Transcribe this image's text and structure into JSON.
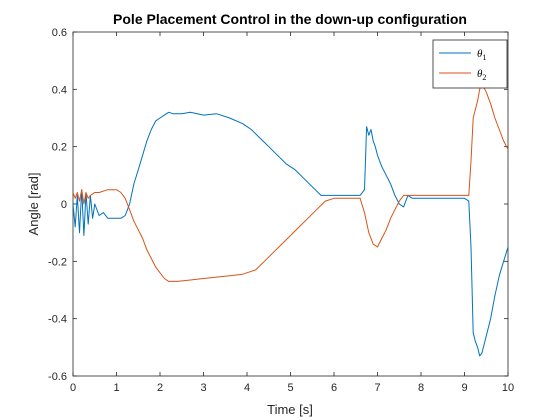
{
  "chart_data": {
    "type": "line",
    "title": "Pole Placement Control in the down-up configuration",
    "xlabel": "Time [s]",
    "ylabel": "Angle [rad]",
    "xlim": [
      0,
      10
    ],
    "ylim": [
      -0.6,
      0.6
    ],
    "xticks": [
      0,
      1,
      2,
      3,
      4,
      5,
      6,
      7,
      8,
      9,
      10
    ],
    "yticks": [
      -0.6,
      -0.4,
      -0.2,
      0,
      0.2,
      0.4,
      0.6
    ],
    "xtick_labels": [
      "0",
      "1",
      "2",
      "3",
      "4",
      "5",
      "6",
      "7",
      "8",
      "9",
      "10"
    ],
    "ytick_labels": [
      "-0.6",
      "-0.4",
      "-0.2",
      "0",
      "0.2",
      "0.4",
      "0.6"
    ],
    "grid": false,
    "legend_position": "top-right",
    "series": [
      {
        "name": "θ1",
        "legend_base": "θ",
        "legend_sub": "1",
        "color": "#0072BD",
        "x": [
          0,
          0.05,
          0.1,
          0.15,
          0.2,
          0.25,
          0.3,
          0.35,
          0.4,
          0.45,
          0.5,
          0.6,
          0.7,
          0.8,
          0.9,
          1.0,
          1.1,
          1.2,
          1.3,
          1.4,
          1.5,
          1.6,
          1.7,
          1.8,
          1.9,
          2.0,
          2.1,
          2.2,
          2.3,
          2.5,
          2.7,
          3.0,
          3.3,
          3.6,
          3.9,
          4.1,
          4.3,
          4.5,
          4.7,
          4.9,
          5.1,
          5.3,
          5.5,
          5.7,
          5.8,
          6.0,
          6.3,
          6.6,
          6.7,
          6.75,
          6.8,
          6.85,
          6.9,
          6.95,
          7.0,
          7.1,
          7.2,
          7.3,
          7.4,
          7.5,
          7.6,
          7.7,
          7.8,
          7.9,
          8.0,
          8.5,
          9.0,
          9.1,
          9.15,
          9.2,
          9.25,
          9.3,
          9.35,
          9.4,
          9.5,
          9.6,
          9.7,
          9.8,
          9.9,
          10.0
        ],
        "y": [
          0,
          -0.08,
          0.03,
          -0.1,
          0.05,
          -0.11,
          0.04,
          -0.07,
          0.03,
          -0.05,
          0.0,
          -0.04,
          -0.03,
          -0.05,
          -0.05,
          -0.05,
          -0.05,
          -0.04,
          0.0,
          0.07,
          0.12,
          0.17,
          0.22,
          0.26,
          0.29,
          0.3,
          0.31,
          0.32,
          0.315,
          0.315,
          0.32,
          0.31,
          0.315,
          0.3,
          0.28,
          0.26,
          0.23,
          0.2,
          0.17,
          0.14,
          0.12,
          0.09,
          0.06,
          0.03,
          0.03,
          0.03,
          0.03,
          0.03,
          0.05,
          0.27,
          0.24,
          0.26,
          0.22,
          0.2,
          0.17,
          0.13,
          0.1,
          0.07,
          0.03,
          0.0,
          -0.01,
          0.03,
          0.02,
          0.02,
          0.02,
          0.02,
          0.02,
          0.01,
          -0.15,
          -0.45,
          -0.48,
          -0.5,
          -0.53,
          -0.52,
          -0.46,
          -0.4,
          -0.32,
          -0.25,
          -0.2,
          -0.15
        ]
      },
      {
        "name": "θ2",
        "legend_base": "θ",
        "legend_sub": "2",
        "color": "#D95319",
        "x": [
          0,
          0.05,
          0.1,
          0.15,
          0.2,
          0.25,
          0.3,
          0.35,
          0.4,
          0.5,
          0.6,
          0.8,
          1.0,
          1.1,
          1.2,
          1.3,
          1.4,
          1.5,
          1.6,
          1.7,
          1.8,
          1.9,
          2.0,
          2.1,
          2.2,
          2.4,
          2.7,
          3.0,
          3.3,
          3.6,
          3.9,
          4.2,
          4.4,
          4.6,
          4.8,
          5.0,
          5.2,
          5.4,
          5.6,
          5.8,
          6.0,
          6.3,
          6.6,
          6.7,
          6.8,
          6.9,
          7.0,
          7.1,
          7.2,
          7.3,
          7.4,
          7.5,
          7.6,
          7.7,
          8.0,
          8.5,
          9.0,
          9.1,
          9.15,
          9.2,
          9.25,
          9.3,
          9.35,
          9.4,
          9.5,
          9.6,
          9.7,
          9.8,
          9.9,
          10.0
        ],
        "y": [
          0.04,
          0.02,
          0.04,
          0.01,
          0.05,
          0.0,
          0.04,
          0.02,
          0.03,
          0.04,
          0.04,
          0.05,
          0.05,
          0.04,
          0.02,
          -0.02,
          -0.06,
          -0.09,
          -0.12,
          -0.16,
          -0.19,
          -0.22,
          -0.24,
          -0.26,
          -0.27,
          -0.27,
          -0.265,
          -0.26,
          -0.255,
          -0.25,
          -0.245,
          -0.23,
          -0.2,
          -0.17,
          -0.14,
          -0.11,
          -0.08,
          -0.05,
          -0.02,
          0.01,
          0.02,
          0.02,
          0.02,
          -0.03,
          -0.1,
          -0.14,
          -0.15,
          -0.12,
          -0.09,
          -0.05,
          -0.02,
          0.01,
          0.03,
          0.03,
          0.03,
          0.03,
          0.03,
          0.03,
          0.15,
          0.3,
          0.33,
          0.36,
          0.4,
          0.42,
          0.39,
          0.35,
          0.3,
          0.26,
          0.22,
          0.19
        ]
      }
    ]
  }
}
